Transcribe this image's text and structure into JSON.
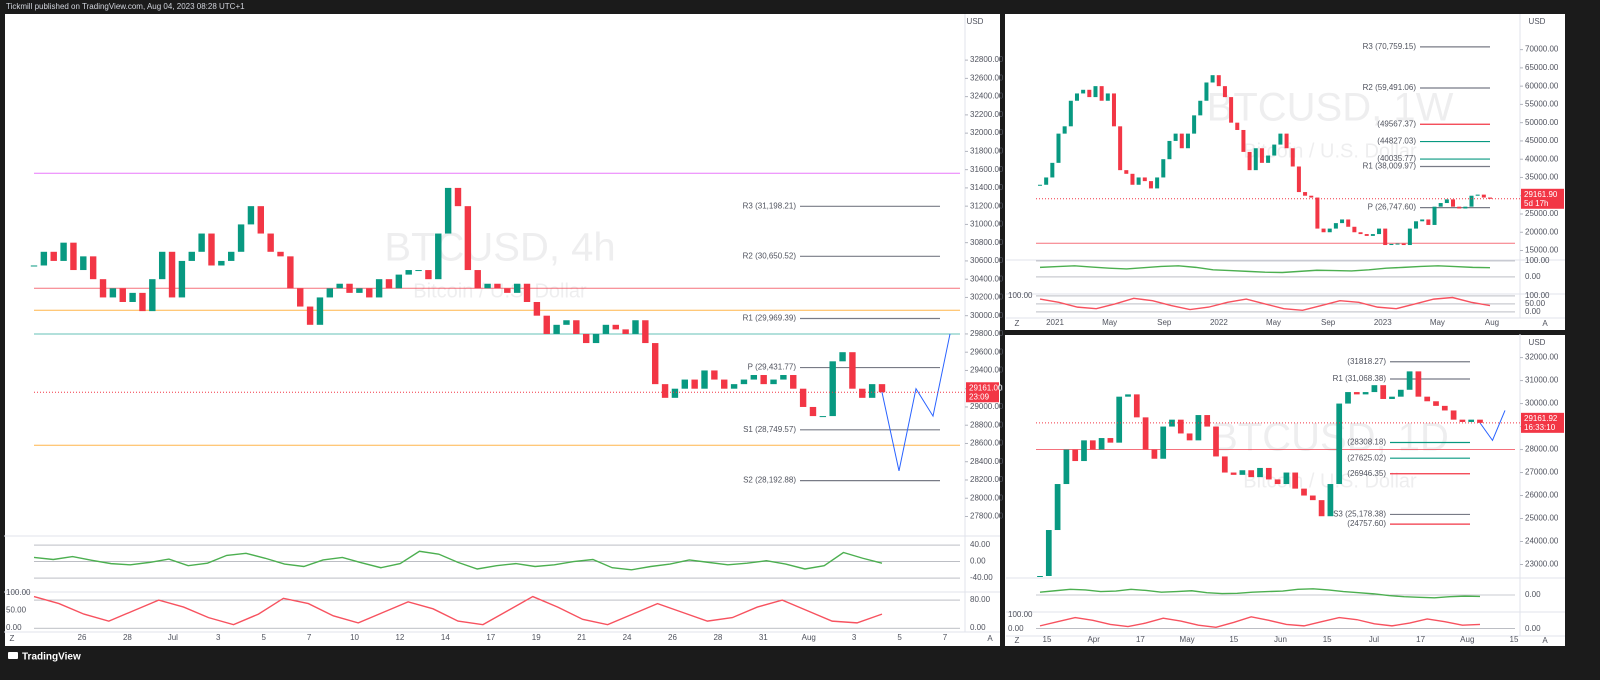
{
  "header": "Tickmill published on TradingView.com, Aug 04, 2023 08:28 UTC+1",
  "footer": "TradingView",
  "controls": {
    "left": "Z",
    "right": "A"
  },
  "chart_data": [
    {
      "type": "candlestick",
      "title": "BTCUSD, 4h",
      "subtitle": "Bitcoin / U.S. Dollar",
      "currency": "USD",
      "ylim": [
        27630,
        33130
      ],
      "yticks": [
        {
          "value": 27800,
          "label": "27800.00"
        },
        {
          "value": 28000,
          "label": "28000.00"
        },
        {
          "value": 28200,
          "label": "28200.00"
        },
        {
          "value": 28400,
          "label": "28400.00"
        },
        {
          "value": 28600,
          "label": "28600.00"
        },
        {
          "value": 28800,
          "label": "28800.00"
        },
        {
          "value": 29000,
          "label": "29000.00"
        },
        {
          "value": 29200,
          "label": "29200.00"
        },
        {
          "value": 29400,
          "label": "29400.00"
        },
        {
          "value": 29600,
          "label": "29600.00"
        },
        {
          "value": 29800,
          "label": "29800.00"
        },
        {
          "value": 30000,
          "label": "30000.00"
        },
        {
          "value": 30200,
          "label": "30200.00"
        },
        {
          "value": 30400,
          "label": "30400.00"
        },
        {
          "value": 30600,
          "label": "30600.00"
        },
        {
          "value": 30800,
          "label": "30800.00"
        },
        {
          "value": 31000,
          "label": "31000.00"
        },
        {
          "value": 31200,
          "label": "31200.00"
        },
        {
          "value": 31400,
          "label": "31400.00"
        },
        {
          "value": 31600,
          "label": "31600.00"
        },
        {
          "value": 31800,
          "label": "31800.00"
        },
        {
          "value": 32000,
          "label": "32000.00"
        },
        {
          "value": 32200,
          "label": "32200.00"
        },
        {
          "value": 32400,
          "label": "32400.00"
        },
        {
          "value": 32600,
          "label": "32600.00"
        },
        {
          "value": 32800,
          "label": "32800.00"
        }
      ],
      "x_labels": [
        "26",
        "28",
        "Jul",
        "3",
        "5",
        "7",
        "10",
        "12",
        "14",
        "17",
        "19",
        "21",
        "24",
        "26",
        "28",
        "31",
        "Aug",
        "3",
        "5",
        "7"
      ],
      "close": [
        30550,
        30700,
        30600,
        30800,
        30500,
        30650,
        30400,
        30200,
        30300,
        30150,
        30250,
        30050,
        30400,
        30700,
        30200,
        30600,
        30700,
        30900,
        30550,
        30600,
        30700,
        31000,
        31200,
        30900,
        30700,
        30650,
        30300,
        30100,
        29900,
        30200,
        30300,
        30350,
        30250,
        30300,
        30200,
        30400,
        30300,
        30450,
        30500,
        30500,
        30400,
        30900,
        31400,
        31200,
        30500,
        30300,
        30350,
        30300,
        30250,
        30350,
        30150,
        30000,
        29800,
        29900,
        29950,
        29800,
        29700,
        29800,
        29900,
        29850,
        29800,
        29950,
        29700,
        29250,
        29100,
        29200,
        29300,
        29200,
        29400,
        29300,
        29200,
        29250,
        29300,
        29350,
        29250,
        29300,
        29350,
        29200,
        29000,
        28900,
        28900,
        29500,
        29600,
        29200,
        29100,
        29250,
        29161
      ],
      "projection": {
        "color": "#2962ff",
        "values": [
          29161,
          28300,
          29200,
          28900,
          29800
        ]
      },
      "levels": [
        {
          "label": "R3 (31,198.21)",
          "value": 31198.21,
          "color": "#787b86"
        },
        {
          "label": "R2 (30,650.52)",
          "value": 30650.52,
          "color": "#787b86"
        },
        {
          "label": "R1 (29,969.39)",
          "value": 29969.39,
          "color": "#787b86"
        },
        {
          "label": "P (29,431.77)",
          "value": 29431.77,
          "color": "#787b86"
        },
        {
          "label": "S1 (28,749.57)",
          "value": 28749.57,
          "color": "#787b86"
        },
        {
          "label": "S2 (28,192.88)",
          "value": 28192.88,
          "color": "#787b86"
        }
      ],
      "hlines": [
        {
          "value": 30300,
          "color": "#f23645"
        },
        {
          "value": 31560,
          "color": "#e040fb"
        },
        {
          "value": 30060,
          "color": "#ff9800"
        },
        {
          "value": 29800,
          "color": "#26a69a"
        },
        {
          "value": 28580,
          "color": "#ff9800"
        }
      ],
      "last_price": {
        "value": 29161,
        "label": "29161.00",
        "countdown": "23:09"
      },
      "oscillators": [
        {
          "ylim": [
            -69,
            62
          ],
          "yticks": [
            {
              "value": 40,
              "label": "40.00"
            },
            {
              "value": 0,
              "label": "0.00"
            },
            {
              "value": -40,
              "label": "-40.00"
            }
          ],
          "series": [
            {
              "color": "#4caf50",
              "values": [
                10,
                5,
                12,
                3,
                -5,
                -8,
                -2,
                6,
                -10,
                -4,
                15,
                20,
                8,
                -6,
                -12,
                4,
                10,
                -3,
                -15,
                -5,
                25,
                18,
                -2,
                -18,
                -10,
                -5,
                -12,
                -8,
                0,
                5,
                -15,
                -20,
                -12,
                -6,
                4,
                -2,
                -8,
                -4,
                2,
                -6,
                -18,
                -10,
                22,
                8,
                -4
              ]
            }
          ]
        },
        {
          "ylim": [
            -11,
            103
          ],
          "yticks": [
            {
              "value": 80,
              "label": "80.00"
            },
            {
              "value": 0,
              "label": "0.00"
            }
          ],
          "left_ticks": [
            {
              "value": 100,
              "label": "100.00"
            },
            {
              "value": 50,
              "label": "50.00"
            },
            {
              "value": 0,
              "label": "0.00"
            }
          ],
          "series": [
            {
              "color": "#f7525f",
              "values": [
                90,
                70,
                40,
                20,
                50,
                80,
                60,
                30,
                10,
                40,
                85,
                70,
                35,
                15,
                45,
                75,
                55,
                20,
                10,
                50,
                90,
                60,
                25,
                10,
                40,
                70,
                45,
                20,
                30,
                60,
                80,
                50,
                20,
                15,
                40
              ]
            }
          ]
        }
      ]
    },
    {
      "type": "candlestick",
      "title": "BTCUSD, 1W",
      "subtitle": "Bitcoin / U.S. Dollar",
      "currency": "USD",
      "ylim": [
        12950,
        75370
      ],
      "yticks": [
        {
          "value": 15000,
          "label": "15000.00"
        },
        {
          "value": 20000,
          "label": "20000.00"
        },
        {
          "value": 25000,
          "label": "25000.00"
        },
        {
          "value": 30000,
          "label": "30000.00"
        },
        {
          "value": 35000,
          "label": "35000.00"
        },
        {
          "value": 40000,
          "label": "40000.00"
        },
        {
          "value": 45000,
          "label": "45000.00"
        },
        {
          "value": 50000,
          "label": "50000.00"
        },
        {
          "value": 55000,
          "label": "55000.00"
        },
        {
          "value": 60000,
          "label": "60000.00"
        },
        {
          "value": 65000,
          "label": "65000.00"
        },
        {
          "value": 70000,
          "label": "70000.00"
        }
      ],
      "x_labels": [
        "2021",
        "May",
        "Sep",
        "2022",
        "May",
        "Sep",
        "2023",
        "May",
        "Aug"
      ],
      "close": [
        33000,
        35000,
        39000,
        47000,
        49000,
        56000,
        58000,
        59000,
        57000,
        60000,
        56000,
        58000,
        49000,
        37000,
        36000,
        33000,
        35000,
        34000,
        32000,
        35000,
        40000,
        45000,
        47000,
        43000,
        47000,
        52000,
        56000,
        61000,
        63000,
        60000,
        57000,
        50000,
        48000,
        42000,
        37000,
        43000,
        39000,
        41000,
        44000,
        47000,
        43000,
        38000,
        31000,
        30000,
        29500,
        21000,
        20000,
        21000,
        22500,
        23500,
        21500,
        20000,
        19500,
        19000,
        19500,
        21000,
        16500,
        16800,
        16900,
        16500,
        21000,
        23000,
        23500,
        22000,
        27000,
        28000,
        29000,
        27000,
        26500,
        27000,
        30000,
        30300,
        29500,
        29161
      ],
      "levels": [
        {
          "label": "R3 (70,759.15)",
          "value": 70759.15,
          "color": "#787b86"
        },
        {
          "label": "R2 (59,491.06)",
          "value": 59491.06,
          "color": "#787b86"
        },
        {
          "label": "(49567.37)",
          "value": 49567.37,
          "color": "#f23645"
        },
        {
          "label": "(44827.03)",
          "value": 44827.03,
          "color": "#089981"
        },
        {
          "label": "(40035.77)",
          "value": 40035.77,
          "color": "#089981"
        },
        {
          "label": "R1 (38,009.97)",
          "value": 38009.97,
          "color": "#787b86"
        },
        {
          "label": "P (26,747.60)",
          "value": 26747.6,
          "color": "#787b86"
        }
      ],
      "hlines": [
        {
          "value": 17000,
          "color": "#f23645"
        }
      ],
      "last_price": {
        "value": 29161.9,
        "label": "29161.90",
        "countdown": "5d 17h"
      },
      "oscillators": [
        {
          "ylim": [
            -100,
            106
          ],
          "yticks": [
            {
              "value": 100,
              "label": "100.00"
            },
            {
              "value": 0,
              "label": "0.00"
            }
          ],
          "series": [
            {
              "color": "#4caf50",
              "values": [
                60,
                65,
                70,
                62,
                55,
                50,
                58,
                66,
                70,
                60,
                45,
                40,
                35,
                30,
                28,
                35,
                42,
                40,
                38,
                45,
                55,
                60,
                66,
                70,
                65,
                60,
                58
              ]
            }
          ]
        },
        {
          "ylim": [
            -38,
            112
          ],
          "yticks": [
            {
              "value": 100,
              "label": "100.00"
            },
            {
              "value": 50,
              "label": "50.00"
            },
            {
              "value": 0,
              "label": "0.00"
            }
          ],
          "left_ticks": [
            {
              "value": 100,
              "label": "100.00"
            }
          ],
          "series": [
            {
              "color": "#f7525f",
              "values": [
                80,
                60,
                30,
                20,
                50,
                85,
                70,
                40,
                15,
                30,
                60,
                80,
                50,
                20,
                10,
                40,
                70,
                60,
                30,
                20,
                50,
                80,
                90,
                60,
                40
              ]
            }
          ]
        }
      ]
    },
    {
      "type": "candlestick",
      "title": "BTCUSD, 1D",
      "subtitle": "Bitcoin / U.S. Dollar",
      "currency": "USD",
      "ylim": [
        22500,
        32330
      ],
      "yticks": [
        {
          "value": 23000,
          "label": "23000.00"
        },
        {
          "value": 24000,
          "label": "24000.00"
        },
        {
          "value": 25000,
          "label": "25000.00"
        },
        {
          "value": 26000,
          "label": "26000.00"
        },
        {
          "value": 27000,
          "label": "27000.00"
        },
        {
          "value": 28000,
          "label": "28000.00"
        },
        {
          "value": 29000,
          "label": "29000.00"
        },
        {
          "value": 30000,
          "label": "30000.00"
        },
        {
          "value": 31000,
          "label": "31000.00"
        },
        {
          "value": 32000,
          "label": "32000.00"
        }
      ],
      "x_labels": [
        "15",
        "Apr",
        "17",
        "May",
        "15",
        "Jun",
        "15",
        "Jul",
        "17",
        "Aug",
        "15"
      ],
      "close": [
        22500,
        24500,
        26500,
        28000,
        27500,
        28400,
        28000,
        28500,
        28300,
        30300,
        30400,
        29400,
        28000,
        27600,
        29000,
        29300,
        28700,
        28400,
        29500,
        29000,
        27700,
        27000,
        26900,
        27100,
        26800,
        27200,
        26700,
        26500,
        27000,
        26300,
        26000,
        25800,
        25100,
        26500,
        30000,
        30500,
        30400,
        30500,
        30800,
        30200,
        30300,
        30600,
        31400,
        30300,
        30100,
        29900,
        29700,
        29300,
        29200,
        29300,
        29161
      ],
      "projection": {
        "color": "#2962ff",
        "values": [
          29161,
          28400,
          29700
        ]
      },
      "levels": [
        {
          "label": "(31818.27)",
          "value": 31818.27,
          "color": "#787b86"
        },
        {
          "label": "R1 (31,068.38)",
          "value": 31068.38,
          "color": "#787b86"
        },
        {
          "label": "(28308.18)",
          "value": 28308.18,
          "color": "#089981"
        },
        {
          "label": "(27625.02)",
          "value": 27625.02,
          "color": "#089981"
        },
        {
          "label": "(26946.35)",
          "value": 26946.35,
          "color": "#f23645"
        },
        {
          "label": "S3 (25,178.38)",
          "value": 25178.38,
          "color": "#787b86"
        },
        {
          "label": "(24757.60)",
          "value": 24757.6,
          "color": "#f23645"
        }
      ],
      "hlines": [
        {
          "value": 28000,
          "color": "#f23645"
        }
      ],
      "last_price": {
        "value": 29161.92,
        "label": "29161.92",
        "countdown": "16:33:10"
      },
      "oscillators": [
        {
          "ylim": [
            -60,
            60
          ],
          "yticks": [
            {
              "value": 0,
              "label": "0.00"
            }
          ],
          "series": [
            {
              "color": "#4caf50",
              "values": [
                10,
                15,
                20,
                18,
                12,
                14,
                20,
                16,
                10,
                12,
                15,
                8,
                5,
                6,
                10,
                12,
                14,
                20,
                22,
                18,
                12,
                8,
                4,
                -2,
                -6,
                -8,
                -10,
                -6,
                -4,
                -5
              ]
            }
          ]
        },
        {
          "ylim": [
            -53,
            120
          ],
          "yticks": [
            {
              "value": 0,
              "label": "0.00"
            }
          ],
          "left_ticks": [
            {
              "value": 100,
              "label": "100.00"
            },
            {
              "value": 0,
              "label": "0.00"
            }
          ],
          "series": [
            {
              "color": "#f7525f",
              "values": [
                20,
                50,
                80,
                60,
                30,
                15,
                40,
                75,
                55,
                25,
                10,
                45,
                85,
                60,
                30,
                20,
                50,
                80,
                65,
                35,
                20,
                40,
                70,
                50,
                25,
                30
              ]
            }
          ]
        }
      ]
    }
  ]
}
